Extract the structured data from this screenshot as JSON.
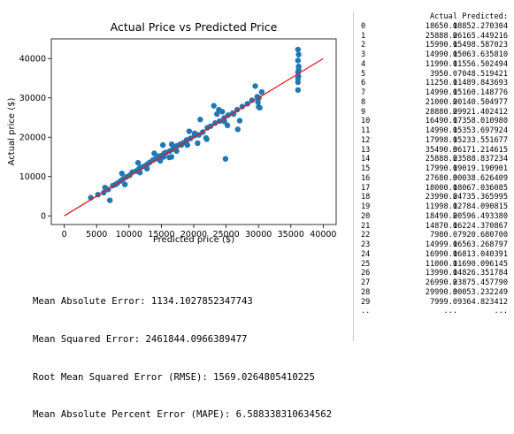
{
  "chart_data": {
    "type": "scatter",
    "title": "Actual Price vs Predicted Price",
    "xlabel": "Predicted price ($)",
    "ylabel": "Actual price ($)",
    "xlim": [
      -2000,
      42000
    ],
    "ylim": [
      -2200,
      45000
    ],
    "xticks": [
      0,
      5000,
      10000,
      15000,
      20000,
      25000,
      30000,
      35000,
      40000
    ],
    "xtick_labels": [
      "0",
      "5000",
      "10000",
      "15000",
      "20000",
      "25000",
      "30000",
      "35000",
      "40000"
    ],
    "yticks": [
      0,
      10000,
      20000,
      30000,
      40000
    ],
    "ytick_labels": [
      "0",
      "10000",
      "20000",
      "30000",
      "40000"
    ],
    "grid": false,
    "series": [
      {
        "type": "scatter",
        "color": "#1f77b4",
        "x": [
          18852,
          26165,
          15499,
          15064,
          11557,
          7049,
          11490,
          15160,
          20141,
          29921,
          17358,
          15354,
          15234,
          36171,
          23589,
          19019,
          30039,
          18067,
          24736,
          12784,
          20596,
          16224,
          7920,
          16563,
          16813,
          11690,
          14826,
          23876,
          30053,
          9365,
          4100,
          5200,
          6100,
          6800,
          7500,
          8200,
          8700,
          9100,
          9600,
          10100,
          10500,
          11100,
          11800,
          12300,
          12800,
          13200,
          13700,
          14100,
          14600,
          15100,
          15700,
          16300,
          16900,
          17400,
          17900,
          18400,
          18900,
          19500,
          20100,
          20800,
          21400,
          22100,
          22600,
          23300,
          24000,
          24700,
          25300,
          26000,
          26700,
          27500,
          28300,
          29000,
          29800,
          30500,
          22000,
          25200,
          36100,
          36100,
          36100,
          36200,
          36100,
          36200,
          36100,
          36100,
          36200,
          24900,
          26800,
          29500,
          30200,
          21000,
          23100,
          6300,
          8900,
          11400,
          13900,
          16600,
          19300,
          21900,
          24400,
          27100
        ],
        "y": [
          18650,
          25888,
          15990,
          14990,
          11990,
          3950,
          11250,
          14990,
          21000,
          28880,
          16490,
          14990,
          17998,
          35490,
          25888,
          17990,
          27680,
          18000,
          23990,
          11998,
          18490,
          14870,
          7980,
          14999,
          16990,
          11000,
          13990,
          26990,
          29990,
          7999,
          4600,
          5400,
          5900,
          6700,
          7700,
          8300,
          8900,
          9400,
          9900,
          10300,
          11100,
          11400,
          12300,
          12600,
          13100,
          13600,
          14200,
          14500,
          15200,
          15400,
          16100,
          16500,
          17200,
          17800,
          18200,
          18600,
          19300,
          19700,
          20400,
          20600,
          21300,
          22400,
          22800,
          23600,
          24100,
          24900,
          25600,
          26100,
          27000,
          27800,
          28500,
          29400,
          30300,
          31500,
          19500,
          23000,
          32000,
          34000,
          36500,
          38000,
          39500,
          41000,
          42300,
          35000,
          37200,
          14500,
          22000,
          33000,
          27500,
          24500,
          28000,
          7200,
          10800,
          13500,
          15900,
          18200,
          21500,
          19800,
          26500,
          24200
        ]
      },
      {
        "type": "line",
        "color": "#e31a1c",
        "x": [
          0,
          40000
        ],
        "y": [
          0,
          40000
        ]
      }
    ]
  },
  "metrics": [
    "Mean Absolute Error: 1134.1027852347743",
    "Mean Squared Error: 2461844.0966389477",
    "Root Mean Squared Error (RMSE): 1569.0264805410225",
    "Mean Absolute Percent Error (MAPE): 6.588338310634562"
  ],
  "table": {
    "headers": [
      "",
      "Actual",
      "Predicted:"
    ],
    "rows": [
      [
        "0",
        "18650.0",
        "18852.270304"
      ],
      [
        "1",
        "25888.0",
        "26165.449216"
      ],
      [
        "2",
        "15990.0",
        "15498.587023"
      ],
      [
        "3",
        "14990.0",
        "15063.635810"
      ],
      [
        "4",
        "11990.0",
        "11556.502494"
      ],
      [
        "5",
        "3950.0",
        "7048.519421"
      ],
      [
        "6",
        "11250.0",
        "11489.843693"
      ],
      [
        "7",
        "14990.0",
        "15160.148776"
      ],
      [
        "8",
        "21000.0",
        "20140.504977"
      ],
      [
        "9",
        "28880.0",
        "29921.402412"
      ],
      [
        "10",
        "16490.0",
        "17358.010980"
      ],
      [
        "11",
        "14990.0",
        "15353.697924"
      ],
      [
        "12",
        "17998.0",
        "15233.551677"
      ],
      [
        "13",
        "35490.0",
        "36171.214615"
      ],
      [
        "14",
        "25888.0",
        "23588.837234"
      ],
      [
        "15",
        "17990.0",
        "19019.190901"
      ],
      [
        "16",
        "27680.0",
        "30038.626409"
      ],
      [
        "17",
        "18000.0",
        "18067.036085"
      ],
      [
        "18",
        "23990.0",
        "24735.365995"
      ],
      [
        "19",
        "11998.0",
        "12784.090815"
      ],
      [
        "20",
        "18490.0",
        "20596.493380"
      ],
      [
        "21",
        "14870.0",
        "16224.370867"
      ],
      [
        "22",
        "7980.0",
        "7920.680700"
      ],
      [
        "23",
        "14999.0",
        "16563.268797"
      ],
      [
        "24",
        "16990.0",
        "16813.040391"
      ],
      [
        "25",
        "11000.0",
        "11690.096145"
      ],
      [
        "26",
        "13990.0",
        "14826.351784"
      ],
      [
        "27",
        "26990.0",
        "23875.457790"
      ],
      [
        "28",
        "29990.0",
        "30053.232249"
      ],
      [
        "29",
        "7999.0",
        "9364.823412"
      ],
      [
        "..",
        "...",
        "..."
      ]
    ]
  }
}
